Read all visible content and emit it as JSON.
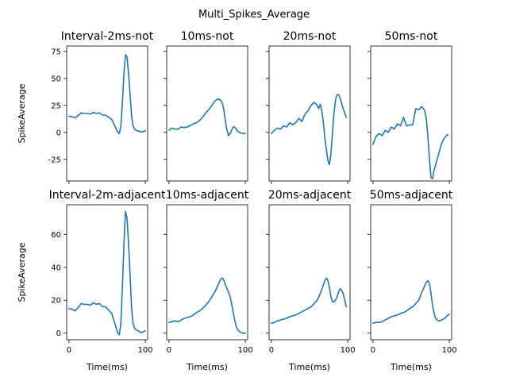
{
  "figure": {
    "title": "Multi_Spikes_Average",
    "series_color": "#1f77b4"
  },
  "chart_data": [
    {
      "type": "line",
      "title": "Interval-2ms-not",
      "xlabel": "",
      "ylabel": "SpikeAverage",
      "xlim": [
        -3,
        103
      ],
      "ylim": [
        -45,
        80
      ],
      "xticks": [
        0,
        100
      ],
      "yticks": [
        -25,
        0,
        25,
        50,
        75
      ],
      "x": [
        0,
        4,
        8,
        12,
        16,
        20,
        24,
        28,
        32,
        36,
        40,
        44,
        48,
        52,
        56,
        60,
        62,
        64,
        66,
        68,
        70,
        72,
        74,
        76,
        78,
        80,
        82,
        84,
        86,
        88,
        90,
        92,
        94,
        96,
        98,
        100
      ],
      "y": [
        15,
        14.5,
        13.5,
        15.5,
        18,
        17.5,
        17.5,
        17,
        18.5,
        17.5,
        18,
        16,
        16,
        14,
        12,
        6,
        3,
        0,
        -1,
        6,
        28,
        55,
        72,
        70,
        55,
        35,
        15,
        6,
        3,
        2,
        1.5,
        1,
        0.5,
        0.5,
        1,
        1.5
      ]
    },
    {
      "type": "line",
      "title": "10ms-not",
      "xlabel": "",
      "ylabel": "",
      "xlim": [
        -3,
        103
      ],
      "ylim": [
        -45,
        80
      ],
      "xticks": [
        0,
        100
      ],
      "yticks": [
        -25,
        0,
        25,
        50,
        75
      ],
      "x": [
        0,
        4,
        8,
        12,
        16,
        20,
        24,
        28,
        32,
        36,
        40,
        44,
        48,
        52,
        56,
        60,
        64,
        66,
        68,
        70,
        72,
        74,
        76,
        78,
        80,
        82,
        84,
        86,
        88,
        90,
        92,
        94,
        96,
        98,
        100
      ],
      "y": [
        2,
        4,
        3,
        3,
        5,
        4.5,
        5,
        6.5,
        8,
        9,
        11,
        14,
        18,
        21,
        25,
        29,
        31,
        30.5,
        29.5,
        27,
        20,
        10,
        2,
        -3,
        -1,
        2,
        5,
        5,
        3,
        1,
        0,
        -0.5,
        -1,
        -1,
        -1
      ]
    },
    {
      "type": "line",
      "title": "20ms-not",
      "xlabel": "",
      "ylabel": "",
      "xlim": [
        -3,
        103
      ],
      "ylim": [
        -45,
        80
      ],
      "xticks": [
        0,
        100
      ],
      "yticks": [
        -25,
        0,
        25,
        50,
        75
      ],
      "x": [
        0,
        4,
        8,
        12,
        16,
        20,
        24,
        28,
        32,
        36,
        40,
        44,
        48,
        52,
        56,
        60,
        62,
        64,
        66,
        68,
        70,
        72,
        74,
        76,
        78,
        80,
        82,
        84,
        86,
        88,
        90,
        92,
        94,
        96,
        98
      ],
      "y": [
        -1,
        2,
        4,
        3,
        6,
        5,
        9,
        7,
        9,
        13,
        10,
        17,
        20,
        25,
        28,
        25,
        22,
        26,
        20,
        10,
        -5,
        -16,
        -26,
        -30,
        -20,
        0,
        18,
        30,
        35,
        35,
        32,
        27,
        22,
        18,
        14
      ]
    },
    {
      "type": "line",
      "title": "50ms-not",
      "xlabel": "",
      "ylabel": "",
      "xlim": [
        -3,
        103
      ],
      "ylim": [
        -45,
        80
      ],
      "xticks": [
        0,
        100
      ],
      "yticks": [
        -25,
        0,
        25,
        50,
        75
      ],
      "x": [
        0,
        4,
        8,
        12,
        16,
        20,
        24,
        28,
        32,
        36,
        40,
        44,
        48,
        52,
        56,
        60,
        64,
        66,
        68,
        70,
        72,
        74,
        76,
        78,
        80,
        82,
        84,
        86,
        88,
        90,
        92,
        94,
        96,
        98
      ],
      "y": [
        -11,
        -4,
        -1,
        -3,
        2,
        0,
        5,
        3,
        8,
        6,
        14,
        6,
        7,
        7,
        22,
        21,
        24,
        22,
        20,
        12,
        -5,
        -25,
        -42,
        -43,
        -35,
        -30,
        -25,
        -20,
        -15,
        -10,
        -7,
        -5,
        -3,
        -2
      ]
    },
    {
      "type": "line",
      "title": "Interval-2m-adjacent",
      "xlabel": "Time(ms)",
      "ylabel": "SpikeAverage",
      "xlim": [
        -3,
        103
      ],
      "ylim": [
        -4,
        78
      ],
      "xticks": [
        0,
        100
      ],
      "yticks": [
        0,
        20,
        40,
        60
      ],
      "x": [
        0,
        4,
        8,
        12,
        16,
        20,
        24,
        28,
        32,
        36,
        40,
        44,
        48,
        52,
        56,
        60,
        62,
        64,
        66,
        68,
        70,
        72,
        74,
        76,
        78,
        80,
        82,
        84,
        86,
        88,
        90,
        92,
        94,
        96,
        98,
        100
      ],
      "y": [
        15,
        14.5,
        13.5,
        15.5,
        18,
        17.5,
        17.5,
        17,
        18.5,
        17.5,
        18,
        16,
        16,
        14,
        12,
        6,
        3,
        0,
        -1,
        6,
        28,
        55,
        74,
        70,
        55,
        35,
        15,
        6,
        3,
        2,
        1.5,
        1,
        0.5,
        0.5,
        1,
        1.5
      ]
    },
    {
      "type": "line",
      "title": "10ms-adjacent",
      "xlabel": "Time(ms)",
      "ylabel": "",
      "xlim": [
        -3,
        103
      ],
      "ylim": [
        -4,
        78
      ],
      "xticks": [
        0,
        100
      ],
      "yticks": [
        0,
        20,
        40,
        60
      ],
      "x": [
        0,
        4,
        8,
        12,
        16,
        20,
        24,
        28,
        32,
        36,
        40,
        44,
        48,
        52,
        56,
        60,
        64,
        68,
        70,
        72,
        74,
        76,
        78,
        80,
        82,
        84,
        86,
        88,
        90,
        92,
        94,
        96,
        98,
        100
      ],
      "y": [
        6.5,
        7,
        7.5,
        7,
        8,
        9,
        9.5,
        10,
        11,
        12.5,
        13.5,
        15,
        17,
        19,
        22,
        25,
        29,
        33,
        33.5,
        32,
        29,
        27,
        25,
        22,
        18,
        13,
        8,
        4,
        2,
        1,
        0.5,
        0,
        0,
        0
      ]
    },
    {
      "type": "line",
      "title": "20ms-adjacent",
      "xlabel": "Time(ms)",
      "ylabel": "",
      "xlim": [
        -3,
        103
      ],
      "ylim": [
        -4,
        78
      ],
      "xticks": [
        0,
        100
      ],
      "yticks": [
        0,
        20,
        40,
        60
      ],
      "x": [
        0,
        4,
        8,
        12,
        16,
        20,
        24,
        28,
        32,
        36,
        40,
        44,
        48,
        52,
        56,
        60,
        64,
        68,
        70,
        72,
        74,
        76,
        78,
        80,
        82,
        84,
        86,
        88,
        90,
        92,
        94,
        96,
        98
      ],
      "y": [
        6,
        6.5,
        7.5,
        8,
        8.5,
        9,
        10,
        10.5,
        11,
        12,
        13,
        14,
        15,
        16,
        18,
        20,
        24,
        29,
        32,
        33.5,
        32,
        28,
        22,
        19,
        19,
        20,
        22,
        25,
        27,
        26,
        24,
        20,
        16
      ]
    },
    {
      "type": "line",
      "title": "50ms-adjacent",
      "xlabel": "Time(ms)",
      "ylabel": "",
      "xlim": [
        -3,
        103
      ],
      "ylim": [
        -4,
        78
      ],
      "xticks": [
        0,
        100
      ],
      "yticks": [
        0,
        20,
        40,
        60
      ],
      "x": [
        0,
        4,
        8,
        12,
        16,
        20,
        24,
        28,
        32,
        36,
        40,
        44,
        48,
        52,
        56,
        60,
        64,
        66,
        68,
        70,
        72,
        74,
        76,
        78,
        80,
        82,
        84,
        86,
        88,
        90,
        92,
        94,
        96,
        98,
        100
      ],
      "y": [
        6,
        6.5,
        6.5,
        7,
        8,
        9,
        10,
        10.5,
        11,
        12,
        12.5,
        13.5,
        15,
        16,
        18,
        20,
        25,
        27,
        29,
        31,
        32,
        30,
        24,
        17,
        12,
        9,
        8,
        7.5,
        7.5,
        8,
        8.5,
        9,
        10,
        11,
        11.5
      ]
    }
  ]
}
